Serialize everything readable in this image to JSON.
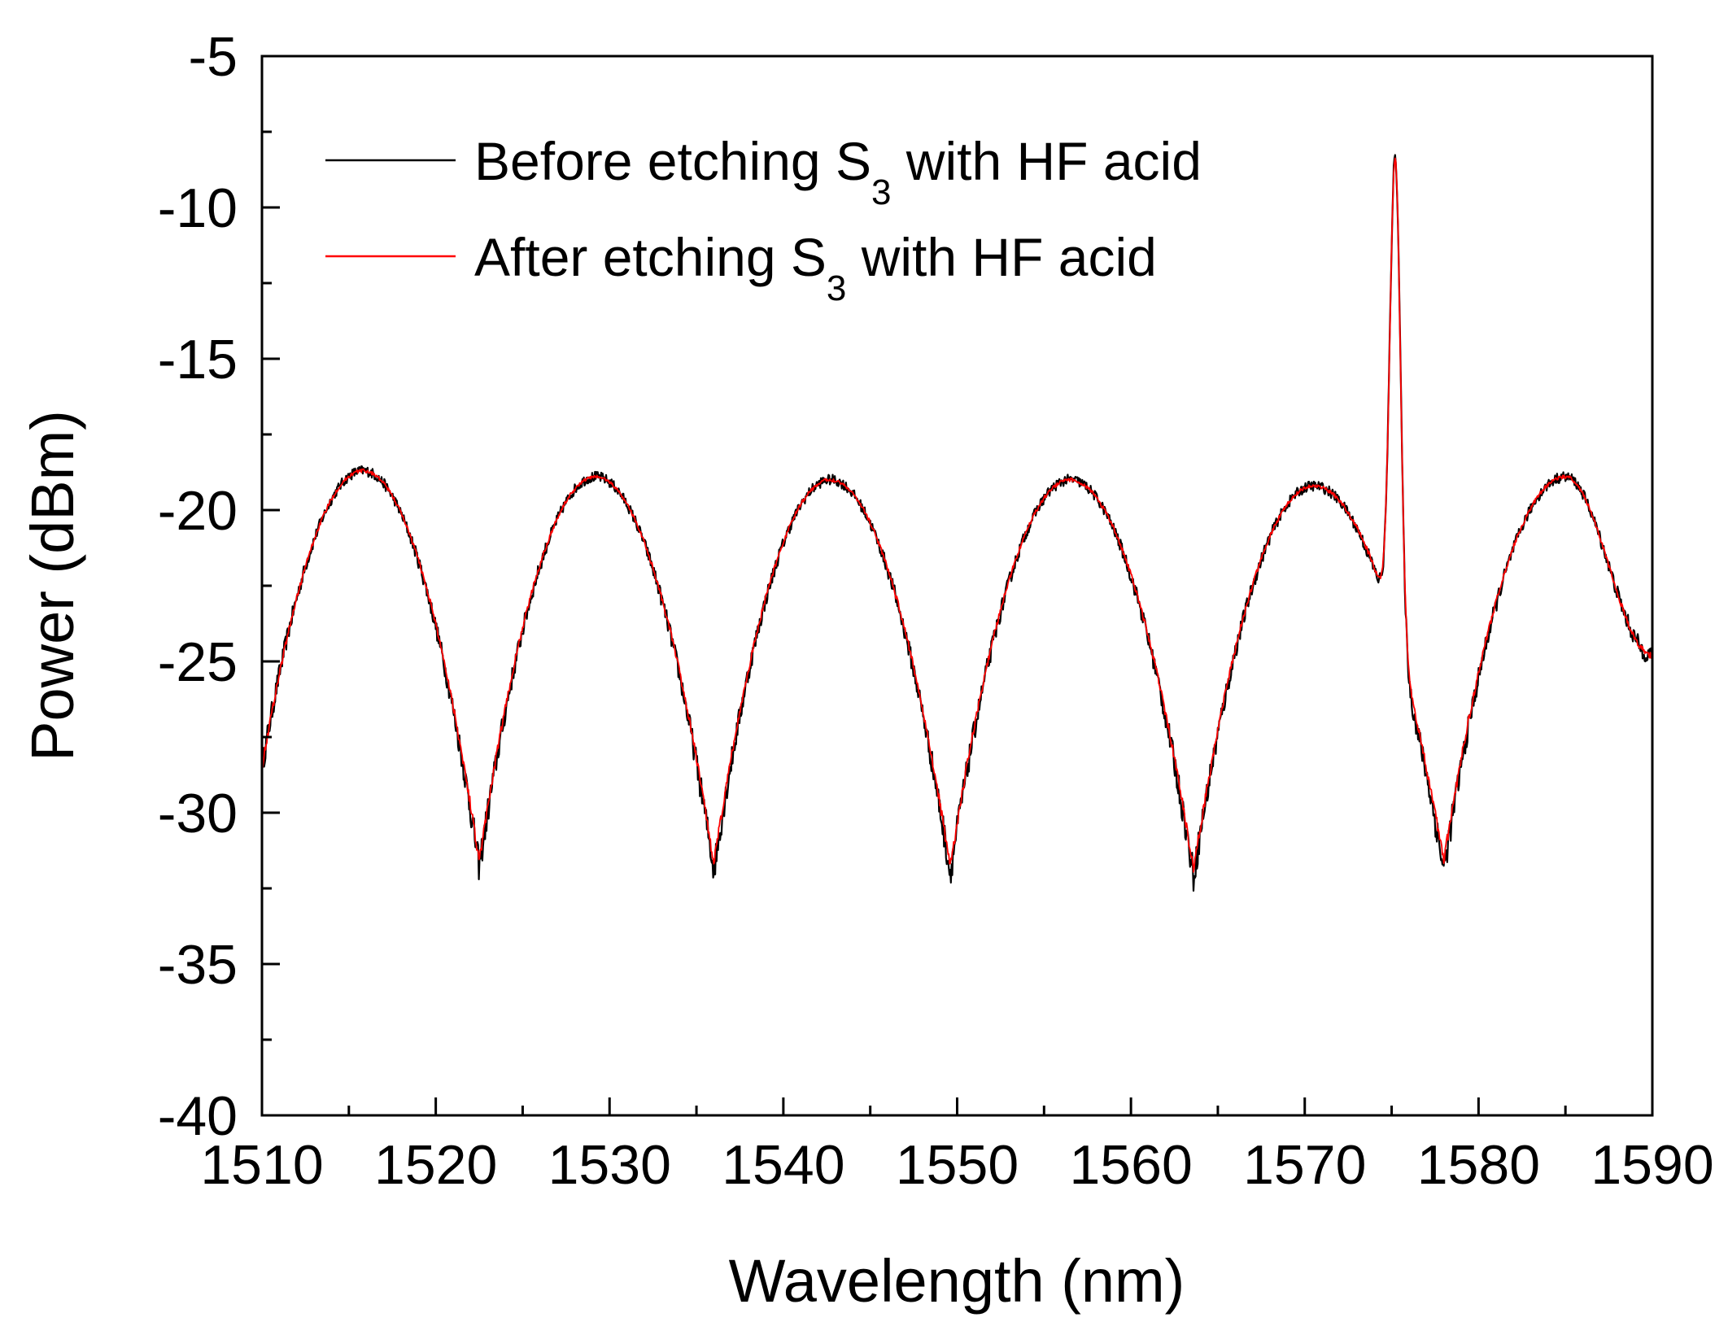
{
  "chart_data": {
    "type": "line",
    "title": "",
    "xlabel": "Wavelength (nm)",
    "ylabel": "Power (dBm)",
    "xlim": [
      1510,
      1590
    ],
    "ylim": [
      -40,
      -5
    ],
    "xticks": [
      1510,
      1520,
      1530,
      1540,
      1550,
      1560,
      1570,
      1580,
      1590
    ],
    "yticks": [
      -5,
      -10,
      -15,
      -20,
      -25,
      -30,
      -35,
      -40
    ],
    "xtick_labels": [
      "1510",
      "1520",
      "1530",
      "1540",
      "1550",
      "1560",
      "1570",
      "1580",
      "1590"
    ],
    "ytick_labels": [
      "-5",
      "-10",
      "-15",
      "-20",
      "-25",
      "-30",
      "-35",
      "-40"
    ],
    "grid": false,
    "legend_position": "top-left",
    "legend": [
      {
        "name": "Before etching S3 with HF acid",
        "prefix": "Before etching S",
        "subscript": "3",
        "suffix": " with HF acid",
        "color": "#000000"
      },
      {
        "name": "After etching S3 with HF acid",
        "prefix": "After etching S",
        "subscript": "3",
        "suffix": " with HF acid",
        "color": "#ff0000"
      }
    ],
    "series": [
      {
        "name": "Before etching S3 with HF acid",
        "color": "#000000",
        "noise": 0.35,
        "peaks": [
          1515.8,
          1529.2,
          1542.7,
          1556.5,
          1570.5,
          1585.0
        ],
        "peak_levels": [
          -18.7,
          -18.9,
          -19.0,
          -19.0,
          -19.2,
          -18.9
        ],
        "dips": [
          1522.5,
          1536.0,
          1549.6,
          1563.6,
          1578.0
        ],
        "dip_levels": [
          -31.8,
          -31.9,
          -32.0,
          -32.1,
          -31.9
        ],
        "start": [
          1510,
          -28.5
        ],
        "end": [
          1590,
          -24.8
        ],
        "laser_peak": {
          "x": 1575.2,
          "y": -8.3,
          "width": 0.3,
          "shoulder": -22.0
        }
      },
      {
        "name": "After etching S3 with HF acid",
        "color": "#ff0000",
        "noise": 0.12,
        "peaks": [
          1515.8,
          1529.2,
          1542.7,
          1556.5,
          1570.5,
          1585.0
        ],
        "peak_levels": [
          -18.7,
          -18.9,
          -19.0,
          -19.0,
          -19.2,
          -18.9
        ],
        "dips": [
          1522.5,
          1536.0,
          1549.6,
          1563.6,
          1578.0
        ],
        "dip_levels": [
          -31.6,
          -31.7,
          -31.8,
          -31.9,
          -31.6
        ],
        "start": [
          1510,
          -28.5
        ],
        "end": [
          1590,
          -24.8
        ],
        "laser_peak": {
          "x": 1575.2,
          "y": -8.4,
          "width": 0.3,
          "shoulder": -22.0
        }
      }
    ]
  }
}
